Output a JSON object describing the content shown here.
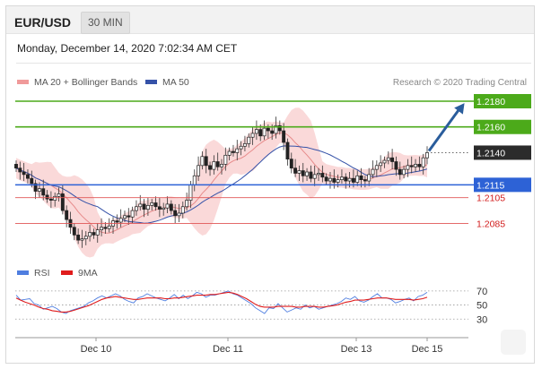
{
  "header": {
    "symbol": "EUR/USD",
    "timeframe": "30 MIN"
  },
  "datetime": "Monday, December 14, 2020 7:02:34 AM CET",
  "legend": {
    "ma20": "MA 20 + Bollinger Bands",
    "ma50": "MA 50",
    "credit": "Research © 2020 Trading Central",
    "rsi": "RSI",
    "nine_ma": "9MA"
  },
  "colors": {
    "resistance": "#4caa1a",
    "support": "#2d62d6",
    "support_minor": "#e05555",
    "current": "#2b2b2b",
    "bollinger_fill": "#f8cccc",
    "ma20": "#e78b8b",
    "ma50": "#3552a8",
    "rsi": "#4f7ee0",
    "nine_ma": "#e01c1c",
    "arrow": "#2a5d9c"
  },
  "chart_data": [
    {
      "type": "candlestick",
      "title": "EUR/USD",
      "x_ticks": [
        "Dec 10",
        "Dec 11",
        "Dec 13",
        "Dec 15"
      ],
      "levels": [
        {
          "name": "resistance-2",
          "value": "1.2180",
          "y": 1.218,
          "kind": "resistance"
        },
        {
          "name": "resistance-1",
          "value": "1.2160",
          "y": 1.216,
          "kind": "resistance"
        },
        {
          "name": "last-price",
          "value": "1.2140",
          "y": 1.214,
          "kind": "current"
        },
        {
          "name": "pivot",
          "value": "1.2115",
          "y": 1.2115,
          "kind": "pivot"
        },
        {
          "name": "support-1",
          "value": "1.2105",
          "y": 1.2105,
          "kind": "support"
        },
        {
          "name": "support-2",
          "value": "1.2085",
          "y": 1.2085,
          "kind": "support"
        }
      ],
      "target": 1.218,
      "close_series": [
        1.2128,
        1.2125,
        1.2123,
        1.212,
        1.2116,
        1.211,
        1.2112,
        1.2107,
        1.2104,
        1.2103,
        1.2106,
        1.2108,
        1.2095,
        1.2088,
        1.2082,
        1.2076,
        1.2072,
        1.2073,
        1.2075,
        1.2078,
        1.2076,
        1.208,
        1.2082,
        1.2081,
        1.2083,
        1.2087,
        1.2086,
        1.2089,
        1.2091,
        1.209,
        1.2095,
        1.2098,
        1.21,
        1.2096,
        1.2099,
        1.2101,
        1.2098,
        1.2096,
        1.2097,
        1.21,
        1.2095,
        1.2091,
        1.2093,
        1.2098,
        1.2103,
        1.2115,
        1.2122,
        1.213,
        1.2137,
        1.213,
        1.2127,
        1.2133,
        1.2129,
        1.2131,
        1.2138,
        1.2141,
        1.214,
        1.2143,
        1.2145,
        1.2147,
        1.2152,
        1.2155,
        1.2158,
        1.2153,
        1.2159,
        1.2157,
        1.2155,
        1.2161,
        1.2157,
        1.2148,
        1.2135,
        1.2128,
        1.2124,
        1.2126,
        1.2122,
        1.2125,
        1.212,
        1.2123,
        1.2124,
        1.2121,
        1.2118,
        1.212,
        1.2117,
        1.2119,
        1.2121,
        1.2118,
        1.212,
        1.2117,
        1.2122,
        1.2119,
        1.2118,
        1.2123,
        1.2127,
        1.213,
        1.2132,
        1.2134,
        1.2136,
        1.2133,
        1.2127,
        1.2123,
        1.2127,
        1.213,
        1.2129,
        1.2131,
        1.2129,
        1.2136,
        1.214
      ]
    },
    {
      "type": "line",
      "title": "RSI",
      "series": [
        {
          "name": "RSI",
          "values": [
            64,
            57,
            58,
            59,
            52,
            50,
            44,
            46,
            48,
            45,
            40,
            38,
            42,
            44,
            46,
            48,
            53,
            56,
            60,
            63,
            60,
            63,
            66,
            63,
            58,
            55,
            53,
            60,
            62,
            66,
            63,
            60,
            58,
            56,
            60,
            65,
            59,
            64,
            59,
            63,
            68,
            66,
            61,
            64,
            64,
            66,
            68,
            70,
            66,
            64,
            60,
            56,
            52,
            46,
            42,
            38,
            46,
            45,
            52,
            46,
            40,
            43,
            46,
            44,
            50,
            46,
            48,
            44,
            46,
            48,
            50,
            52,
            55,
            60,
            58,
            62,
            56,
            54,
            57,
            62,
            66,
            60,
            60,
            58,
            53,
            55,
            58,
            60,
            56,
            62,
            64,
            68
          ]
        },
        {
          "name": "9MA",
          "values": [
            60,
            57,
            54,
            52,
            50,
            47,
            45,
            44,
            42,
            41,
            40,
            40,
            41,
            43,
            45,
            47,
            49,
            52,
            55,
            58,
            60,
            61,
            62,
            61,
            60,
            59,
            58,
            58,
            59,
            60,
            60,
            60,
            60,
            59,
            59,
            60,
            60,
            61,
            62,
            63,
            64,
            64,
            64,
            65,
            65,
            66,
            67,
            68,
            67,
            65,
            62,
            59,
            55,
            51,
            48,
            47,
            47,
            47,
            48,
            48,
            48,
            48,
            47,
            47,
            48,
            48,
            48,
            47,
            47,
            48,
            49,
            50,
            52,
            54,
            55,
            57,
            57,
            57,
            58,
            59,
            60,
            60,
            60,
            59,
            58,
            58,
            58,
            58,
            57,
            58,
            59,
            61
          ]
        }
      ],
      "y_ticks": [
        70,
        50,
        30
      ],
      "ylim": [
        10,
        80
      ],
      "x_ticks": [
        "Dec 10",
        "Dec 11",
        "Dec 13",
        "Dec 15"
      ]
    }
  ]
}
